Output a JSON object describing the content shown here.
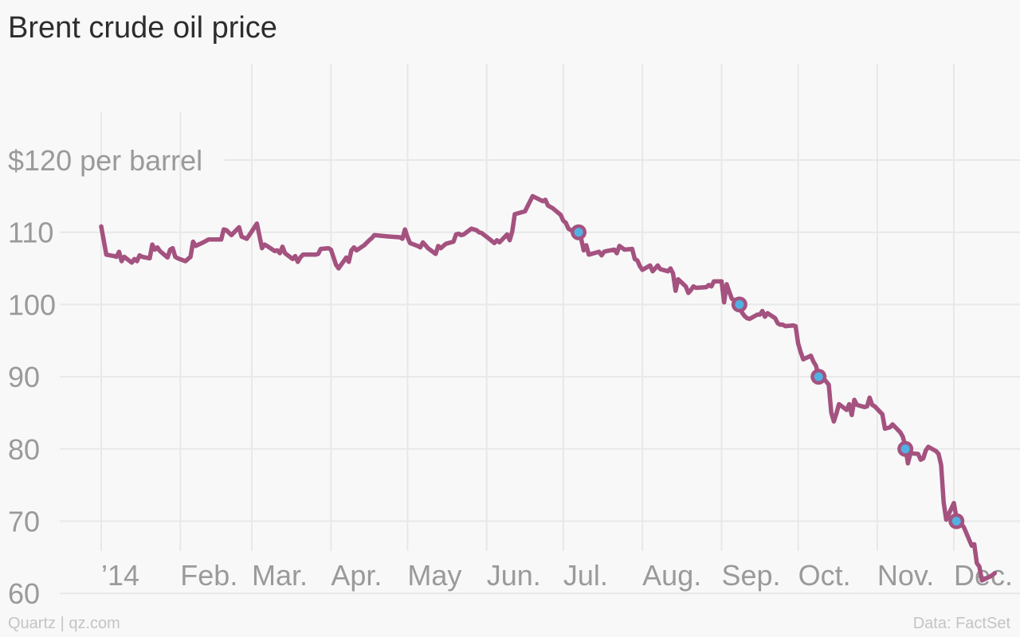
{
  "title": "Brent crude oil price",
  "footer": {
    "credit": "Quartz | qz.com",
    "source": "Data: FactSet"
  },
  "colors": {
    "line": "#a4527f",
    "marker_fill": "#51b1e5",
    "grid": "#e8e8e8",
    "background": "#f8f8f8"
  },
  "chart_data": {
    "type": "line",
    "title": "Brent crude oil price",
    "ylabel": "$120 per barrel",
    "ylim": [
      55,
      125
    ],
    "y_ticks": [
      {
        "value": 120,
        "label": "$120 per barrel"
      },
      {
        "value": 110,
        "label": "110"
      },
      {
        "value": 100,
        "label": "100"
      },
      {
        "value": 90,
        "label": "90"
      },
      {
        "value": 80,
        "label": "80"
      },
      {
        "value": 70,
        "label": "70"
      },
      {
        "value": 60,
        "label": "60"
      }
    ],
    "x_ticks": [
      {
        "date": "2014-01-01",
        "label": "’14"
      },
      {
        "date": "2014-02-01",
        "label": "Feb."
      },
      {
        "date": "2014-03-01",
        "label": "Mar."
      },
      {
        "date": "2014-04-01",
        "label": "Apr."
      },
      {
        "date": "2014-05-01",
        "label": "May"
      },
      {
        "date": "2014-06-01",
        "label": "Jun."
      },
      {
        "date": "2014-07-01",
        "label": "Jul."
      },
      {
        "date": "2014-08-01",
        "label": "Aug."
      },
      {
        "date": "2014-09-01",
        "label": "Sep."
      },
      {
        "date": "2014-10-01",
        "label": "Oct."
      },
      {
        "date": "2014-11-01",
        "label": "Nov."
      },
      {
        "date": "2014-12-01",
        "label": "Dec."
      }
    ],
    "grid": true,
    "series": [
      {
        "points": [
          [
            "2014-01-01",
            110.8
          ],
          [
            "2014-01-03",
            106.9
          ],
          [
            "2014-01-06",
            106.7
          ],
          [
            "2014-01-07",
            106.6
          ],
          [
            "2014-01-08",
            107.3
          ],
          [
            "2014-01-09",
            106.0
          ],
          [
            "2014-01-10",
            106.6
          ],
          [
            "2014-01-13",
            105.8
          ],
          [
            "2014-01-14",
            106.3
          ],
          [
            "2014-01-15",
            106.0
          ],
          [
            "2014-01-16",
            106.8
          ],
          [
            "2014-01-17",
            106.6
          ],
          [
            "2014-01-20",
            106.4
          ],
          [
            "2014-01-21",
            108.3
          ],
          [
            "2014-01-22",
            107.6
          ],
          [
            "2014-01-23",
            107.9
          ],
          [
            "2014-01-24",
            107.4
          ],
          [
            "2014-01-27",
            106.5
          ],
          [
            "2014-01-28",
            107.6
          ],
          [
            "2014-01-29",
            107.8
          ],
          [
            "2014-01-30",
            106.6
          ],
          [
            "2014-01-31",
            106.4
          ],
          [
            "2014-02-03",
            106.0
          ],
          [
            "2014-02-05",
            106.6
          ],
          [
            "2014-02-06",
            108.7
          ],
          [
            "2014-02-07",
            108.1
          ],
          [
            "2014-02-10",
            108.6
          ],
          [
            "2014-02-12",
            109.0
          ],
          [
            "2014-02-14",
            109.0
          ],
          [
            "2014-02-17",
            109.0
          ],
          [
            "2014-02-18",
            110.4
          ],
          [
            "2014-02-19",
            110.3
          ],
          [
            "2014-02-21",
            109.6
          ],
          [
            "2014-02-24",
            110.7
          ],
          [
            "2014-02-25",
            109.4
          ],
          [
            "2014-02-27",
            109.1
          ],
          [
            "2014-02-28",
            109.6
          ],
          [
            "2014-03-03",
            111.2
          ],
          [
            "2014-03-05",
            107.8
          ],
          [
            "2014-03-06",
            108.3
          ],
          [
            "2014-03-07",
            108.1
          ],
          [
            "2014-03-10",
            107.4
          ],
          [
            "2014-03-11",
            107.5
          ],
          [
            "2014-03-12",
            107.1
          ],
          [
            "2014-03-13",
            108.0
          ],
          [
            "2014-03-14",
            107.1
          ],
          [
            "2014-03-17",
            106.3
          ],
          [
            "2014-03-18",
            106.7
          ],
          [
            "2014-03-19",
            105.9
          ],
          [
            "2014-03-20",
            106.5
          ],
          [
            "2014-03-21",
            106.9
          ],
          [
            "2014-03-24",
            106.9
          ],
          [
            "2014-03-26",
            106.9
          ],
          [
            "2014-03-27",
            107.0
          ],
          [
            "2014-03-28",
            107.7
          ],
          [
            "2014-03-31",
            107.8
          ],
          [
            "2014-04-01",
            107.6
          ],
          [
            "2014-04-03",
            105.5
          ],
          [
            "2014-04-04",
            105.0
          ],
          [
            "2014-04-07",
            106.5
          ],
          [
            "2014-04-08",
            105.9
          ],
          [
            "2014-04-09",
            107.5
          ],
          [
            "2014-04-10",
            107.9
          ],
          [
            "2014-04-11",
            107.5
          ],
          [
            "2014-04-14",
            108.2
          ],
          [
            "2014-04-16",
            108.9
          ],
          [
            "2014-04-17",
            109.2
          ],
          [
            "2014-04-18",
            109.6
          ],
          [
            "2014-04-21",
            109.5
          ],
          [
            "2014-04-24",
            109.4
          ],
          [
            "2014-04-28",
            109.3
          ],
          [
            "2014-04-29",
            109.1
          ],
          [
            "2014-04-30",
            110.4
          ],
          [
            "2014-05-01",
            109.3
          ],
          [
            "2014-05-02",
            108.5
          ],
          [
            "2014-05-05",
            108.1
          ],
          [
            "2014-05-06",
            107.9
          ],
          [
            "2014-05-07",
            108.6
          ],
          [
            "2014-05-08",
            108.2
          ],
          [
            "2014-05-09",
            107.8
          ],
          [
            "2014-05-12",
            107.0
          ],
          [
            "2014-05-13",
            108.1
          ],
          [
            "2014-05-14",
            107.8
          ],
          [
            "2014-05-15",
            108.1
          ],
          [
            "2014-05-16",
            108.4
          ],
          [
            "2014-05-19",
            108.7
          ],
          [
            "2014-05-20",
            109.7
          ],
          [
            "2014-05-21",
            109.8
          ],
          [
            "2014-05-22",
            109.6
          ],
          [
            "2014-05-23",
            109.7
          ],
          [
            "2014-05-26",
            110.5
          ],
          [
            "2014-05-27",
            110.4
          ],
          [
            "2014-05-28",
            110.3
          ],
          [
            "2014-05-29",
            110.0
          ],
          [
            "2014-05-30",
            109.9
          ],
          [
            "2014-06-02",
            109.1
          ],
          [
            "2014-06-03",
            108.8
          ],
          [
            "2014-06-04",
            108.5
          ],
          [
            "2014-06-05",
            108.9
          ],
          [
            "2014-06-06",
            108.6
          ],
          [
            "2014-06-09",
            109.7
          ],
          [
            "2014-06-10",
            108.9
          ],
          [
            "2014-06-11",
            110.1
          ],
          [
            "2014-06-12",
            112.5
          ],
          [
            "2014-06-16",
            112.9
          ],
          [
            "2014-06-19",
            115.0
          ],
          [
            "2014-06-23",
            114.3
          ],
          [
            "2014-06-24",
            114.5
          ],
          [
            "2014-06-25",
            113.7
          ],
          [
            "2014-06-27",
            113.3
          ],
          [
            "2014-06-30",
            112.4
          ],
          [
            "2014-07-01",
            111.6
          ],
          [
            "2014-07-02",
            111.3
          ],
          [
            "2014-07-03",
            110.5
          ],
          [
            "2014-07-04",
            110.3
          ],
          [
            "2014-07-07",
            110.2
          ],
          [
            "2014-07-08",
            109.1
          ],
          [
            "2014-07-09",
            107.5
          ],
          [
            "2014-07-10",
            108.2
          ],
          [
            "2014-07-11",
            106.9
          ],
          [
            "2014-07-14",
            107.2
          ],
          [
            "2014-07-15",
            107.3
          ],
          [
            "2014-07-16",
            106.8
          ],
          [
            "2014-07-17",
            107.3
          ],
          [
            "2014-07-18",
            107.4
          ],
          [
            "2014-07-21",
            107.6
          ],
          [
            "2014-07-22",
            107.1
          ],
          [
            "2014-07-23",
            108.1
          ],
          [
            "2014-07-25",
            107.6
          ],
          [
            "2014-07-28",
            107.7
          ],
          [
            "2014-07-29",
            106.3
          ],
          [
            "2014-07-30",
            106.1
          ],
          [
            "2014-07-31",
            105.3
          ],
          [
            "2014-08-01",
            104.8
          ],
          [
            "2014-08-04",
            105.4
          ],
          [
            "2014-08-05",
            104.6
          ],
          [
            "2014-08-06",
            105.0
          ],
          [
            "2014-08-07",
            105.4
          ],
          [
            "2014-08-08",
            104.9
          ],
          [
            "2014-08-11",
            104.6
          ],
          [
            "2014-08-12",
            105.0
          ],
          [
            "2014-08-13",
            104.3
          ],
          [
            "2014-08-14",
            101.9
          ],
          [
            "2014-08-15",
            103.5
          ],
          [
            "2014-08-18",
            102.5
          ],
          [
            "2014-08-19",
            101.6
          ],
          [
            "2014-08-20",
            102.0
          ],
          [
            "2014-08-21",
            102.5
          ],
          [
            "2014-08-22",
            102.3
          ],
          [
            "2014-08-26",
            102.4
          ],
          [
            "2014-08-27",
            102.7
          ],
          [
            "2014-08-28",
            102.5
          ],
          [
            "2014-08-29",
            103.2
          ],
          [
            "2014-09-01",
            103.2
          ],
          [
            "2014-09-02",
            100.3
          ],
          [
            "2014-09-03",
            102.8
          ],
          [
            "2014-09-04",
            101.8
          ],
          [
            "2014-09-05",
            100.8
          ],
          [
            "2014-09-08",
            100.2
          ],
          [
            "2014-09-09",
            98.9
          ],
          [
            "2014-09-10",
            98.4
          ],
          [
            "2014-09-11",
            98.1
          ],
          [
            "2014-09-12",
            98.0
          ],
          [
            "2014-09-15",
            98.6
          ],
          [
            "2014-09-16",
            98.6
          ],
          [
            "2014-09-17",
            99.1
          ],
          [
            "2014-09-18",
            98.3
          ],
          [
            "2014-09-19",
            98.8
          ],
          [
            "2014-09-22",
            98.1
          ],
          [
            "2014-09-23",
            97.4
          ],
          [
            "2014-09-24",
            97.2
          ],
          [
            "2014-09-25",
            97.2
          ],
          [
            "2014-09-26",
            97.0
          ],
          [
            "2014-09-29",
            97.1
          ],
          [
            "2014-09-30",
            97.0
          ],
          [
            "2014-10-01",
            94.6
          ],
          [
            "2014-10-02",
            93.4
          ],
          [
            "2014-10-03",
            92.4
          ],
          [
            "2014-10-06",
            92.9
          ],
          [
            "2014-10-07",
            92.1
          ],
          [
            "2014-10-08",
            91.5
          ],
          [
            "2014-10-09",
            90.1
          ],
          [
            "2014-10-10",
            90.2
          ],
          [
            "2014-10-13",
            88.9
          ],
          [
            "2014-10-14",
            85.0
          ],
          [
            "2014-10-15",
            83.8
          ],
          [
            "2014-10-16",
            84.9
          ],
          [
            "2014-10-17",
            86.2
          ],
          [
            "2014-10-20",
            85.4
          ],
          [
            "2014-10-21",
            86.2
          ],
          [
            "2014-10-22",
            84.7
          ],
          [
            "2014-10-23",
            86.8
          ],
          [
            "2014-10-24",
            86.1
          ],
          [
            "2014-10-27",
            85.8
          ],
          [
            "2014-10-28",
            85.9
          ],
          [
            "2014-10-29",
            87.1
          ],
          [
            "2014-10-30",
            86.1
          ],
          [
            "2014-10-31",
            85.9
          ],
          [
            "2014-11-03",
            84.8
          ],
          [
            "2014-11-04",
            82.8
          ],
          [
            "2014-11-05",
            82.9
          ],
          [
            "2014-11-06",
            83.0
          ],
          [
            "2014-11-07",
            83.4
          ],
          [
            "2014-11-10",
            82.3
          ],
          [
            "2014-11-11",
            81.7
          ],
          [
            "2014-11-12",
            80.4
          ],
          [
            "2014-11-13",
            78.0
          ],
          [
            "2014-11-14",
            79.4
          ],
          [
            "2014-11-17",
            79.3
          ],
          [
            "2014-11-18",
            78.5
          ],
          [
            "2014-11-19",
            78.7
          ],
          [
            "2014-11-20",
            79.8
          ],
          [
            "2014-11-21",
            80.3
          ],
          [
            "2014-11-24",
            79.7
          ],
          [
            "2014-11-25",
            79.3
          ],
          [
            "2014-11-26",
            77.8
          ],
          [
            "2014-11-27",
            72.6
          ],
          [
            "2014-11-28",
            70.2
          ],
          [
            "2014-12-01",
            72.5
          ],
          [
            "2014-12-02",
            70.5
          ],
          [
            "2014-12-03",
            69.9
          ],
          [
            "2014-12-04",
            69.6
          ],
          [
            "2014-12-05",
            69.1
          ],
          [
            "2014-12-08",
            66.6
          ],
          [
            "2014-12-09",
            66.8
          ],
          [
            "2014-12-10",
            64.2
          ],
          [
            "2014-12-11",
            63.7
          ],
          [
            "2014-12-12",
            61.8
          ],
          [
            "2014-12-15",
            62.3
          ],
          [
            "2014-12-16",
            62.5
          ],
          [
            "2014-12-17",
            62.8
          ]
        ]
      }
    ],
    "markers": [
      {
        "date": "2014-07-07",
        "value": 110
      },
      {
        "date": "2014-09-08",
        "value": 100
      },
      {
        "date": "2014-10-09",
        "value": 90
      },
      {
        "date": "2014-11-12",
        "value": 80
      },
      {
        "date": "2014-12-02",
        "value": 70
      }
    ]
  }
}
